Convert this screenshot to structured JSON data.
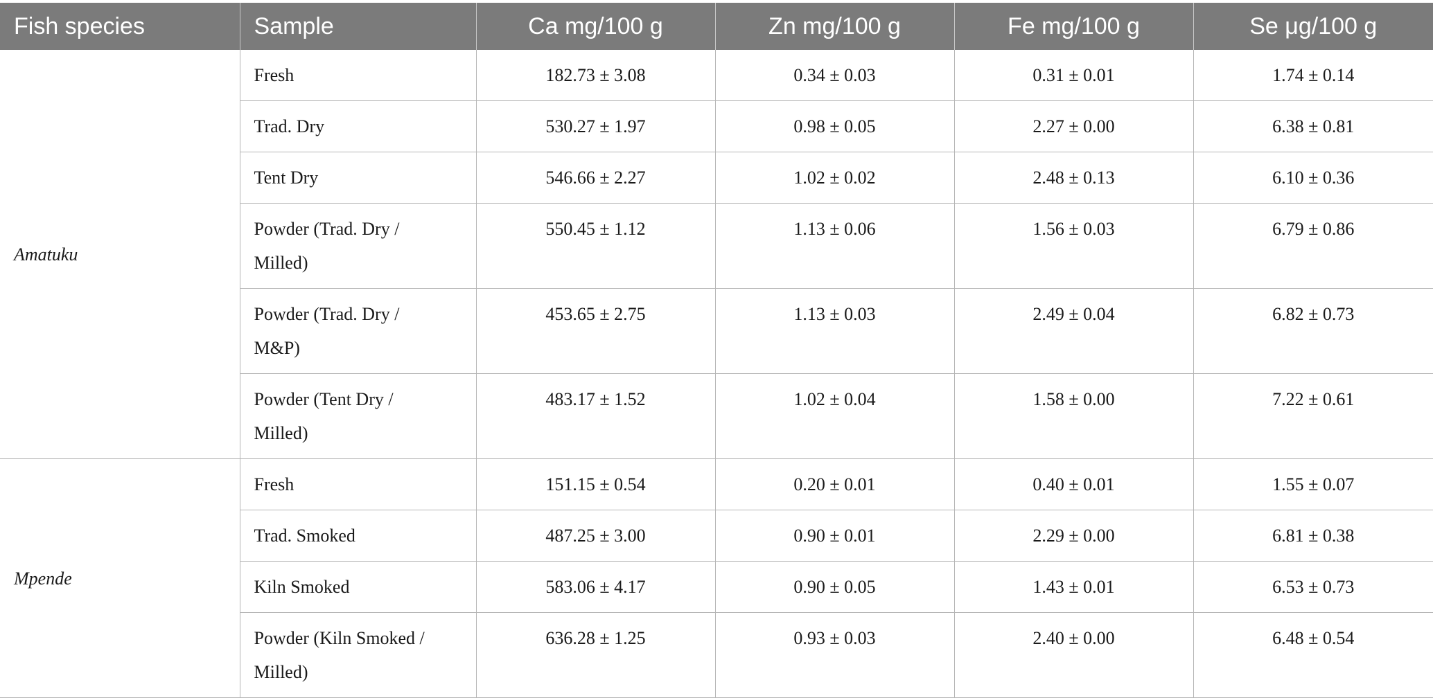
{
  "table": {
    "headers": [
      "Fish species",
      "Sample",
      "Ca mg/100 g",
      "Zn mg/100 g",
      "Fe mg/100 g",
      "Se μg/100 g"
    ],
    "groups": [
      {
        "species": "Amatuku",
        "rows": [
          {
            "sample": "Fresh",
            "ca": "182.73 ± 3.08",
            "zn": "0.34 ± 0.03",
            "fe": "0.31 ± 0.01",
            "se": "1.74 ± 0.14"
          },
          {
            "sample": "Trad. Dry",
            "ca": "530.27 ± 1.97",
            "zn": "0.98 ± 0.05",
            "fe": "2.27 ± 0.00",
            "se": "6.38 ± 0.81"
          },
          {
            "sample": "Tent Dry",
            "ca": "546.66 ± 2.27",
            "zn": "1.02 ± 0.02",
            "fe": "2.48 ± 0.13",
            "se": "6.10 ± 0.36"
          },
          {
            "sample": "Powder (Trad. Dry /\nMilled)",
            "ca": "550.45 ± 1.12",
            "zn": "1.13 ± 0.06",
            "fe": "1.56 ± 0.03",
            "se": "6.79 ± 0.86"
          },
          {
            "sample": "Powder (Trad. Dry /\nM&P)",
            "ca": "453.65 ± 2.75",
            "zn": "1.13 ± 0.03",
            "fe": "2.49 ± 0.04",
            "se": "6.82 ± 0.73"
          },
          {
            "sample": "Powder (Tent Dry /\nMilled)",
            "ca": "483.17 ± 1.52",
            "zn": "1.02 ± 0.04",
            "fe": "1.58 ± 0.00",
            "se": "7.22 ± 0.61"
          }
        ]
      },
      {
        "species": "Mpende",
        "rows": [
          {
            "sample": "Fresh",
            "ca": "151.15 ± 0.54",
            "zn": "0.20 ± 0.01",
            "fe": "0.40 ± 0.01",
            "se": "1.55 ± 0.07"
          },
          {
            "sample": "Trad. Smoked",
            "ca": "487.25 ± 3.00",
            "zn": "0.90 ± 0.01",
            "fe": "2.29 ± 0.00",
            "se": "6.81 ± 0.38"
          },
          {
            "sample": "Kiln Smoked",
            "ca": "583.06 ± 4.17",
            "zn": "0.90 ± 0.05",
            "fe": "1.43 ± 0.01",
            "se": "6.53 ± 0.73"
          },
          {
            "sample": "Powder (Kiln Smoked /\nMilled)",
            "ca": "636.28 ± 1.25",
            "zn": "0.93 ± 0.03",
            "fe": "2.40 ± 0.00",
            "se": "6.48 ± 0.54"
          }
        ]
      }
    ]
  }
}
